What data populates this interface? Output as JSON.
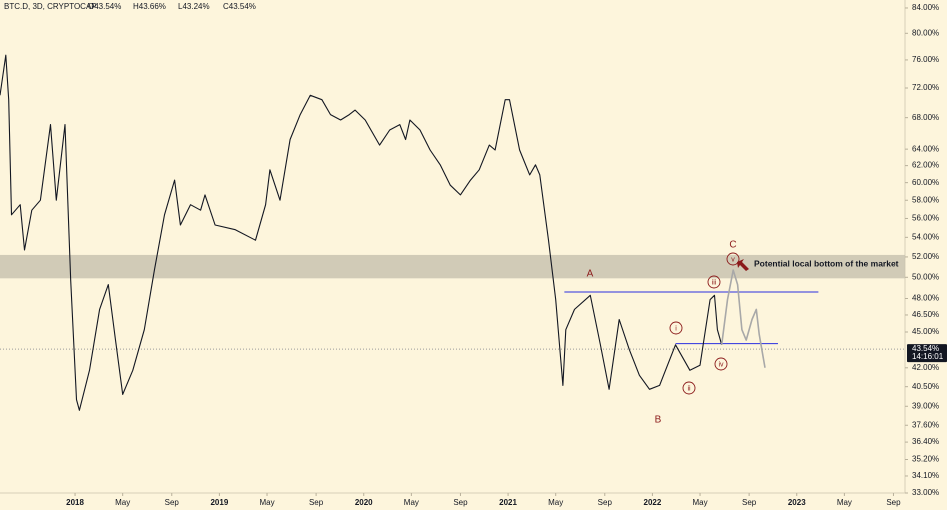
{
  "chart_data": {
    "type": "line",
    "title": "BTC.D, 3D, CRYPTOCAP",
    "ohlc_labels": [
      "O43.54%",
      "H43.66%",
      "L43.24%",
      "C43.54%"
    ],
    "xlim": [
      2017.48,
      2023.75
    ],
    "ylim": [
      33,
      85.3
    ],
    "log_y": true,
    "xticks": [
      2018,
      {
        "value": 2018.33,
        "label": "May"
      },
      {
        "value": 2018.67,
        "label": "Sep"
      },
      2019,
      {
        "value": 2019.33,
        "label": "May"
      },
      {
        "value": 2019.67,
        "label": "Sep"
      },
      2020,
      {
        "value": 2020.33,
        "label": "May"
      },
      {
        "value": 2020.67,
        "label": "Sep"
      },
      2021,
      {
        "value": 2021.33,
        "label": "May"
      },
      {
        "value": 2021.67,
        "label": "Sep"
      },
      2022,
      {
        "value": 2022.33,
        "label": "May"
      },
      {
        "value": 2022.67,
        "label": "Sep"
      },
      2023,
      {
        "value": 2023.33,
        "label": "May"
      },
      {
        "value": 2023.67,
        "label": "Sep"
      }
    ],
    "yticks": [
      {
        "value": 84,
        "label": "84.00%"
      },
      {
        "value": 80,
        "label": "80.00%"
      },
      {
        "value": 76,
        "label": "76.00%"
      },
      {
        "value": 72,
        "label": "72.00%"
      },
      {
        "value": 68,
        "label": "68.00%"
      },
      {
        "value": 64,
        "label": "64.00%"
      },
      {
        "value": 62,
        "label": "62.00%"
      },
      {
        "value": 60,
        "label": "60.00%"
      },
      {
        "value": 58,
        "label": "58.00%"
      },
      {
        "value": 56,
        "label": "56.00%"
      },
      {
        "value": 54,
        "label": "54.00%"
      },
      {
        "value": 52,
        "label": "52.00%"
      },
      {
        "value": 50,
        "label": "50.00%"
      },
      {
        "value": 48,
        "label": "48.00%"
      },
      {
        "value": 46.5,
        "label": "46.50%"
      },
      {
        "value": 45,
        "label": "45.00%"
      },
      {
        "value": 42,
        "label": "42.00%"
      },
      {
        "value": 40.5,
        "label": "40.50%"
      },
      {
        "value": 39,
        "label": "39.00%"
      },
      {
        "value": 37.6,
        "label": "37.60%"
      },
      {
        "value": 36.4,
        "label": "36.40%"
      },
      {
        "value": 35.2,
        "label": "35.20%"
      },
      {
        "value": 34.1,
        "label": "34.10%"
      },
      {
        "value": 33,
        "label": "33.00%"
      }
    ],
    "series": [
      {
        "color": "#131722",
        "x": [
          2017.48,
          2017.52,
          2017.54,
          2017.56,
          2017.62,
          2017.65,
          2017.7,
          2017.76,
          2017.83,
          2017.87,
          2017.93,
          2017.97,
          2018.01,
          2018.03,
          2018.1,
          2018.17,
          2018.23,
          2018.28,
          2018.33,
          2018.4,
          2018.48,
          2018.55,
          2018.62,
          2018.69,
          2018.73,
          2018.8,
          2018.87,
          2018.9,
          2018.97,
          2019.11,
          2019.25,
          2019.32,
          2019.35,
          2019.42,
          2019.49,
          2019.56,
          2019.63,
          2019.71,
          2019.77,
          2019.84,
          2019.9,
          2019.94,
          2020.01,
          2020.11,
          2020.18,
          2020.25,
          2020.29,
          2020.32,
          2020.39,
          2020.46,
          2020.53,
          2020.6,
          2020.67,
          2020.74,
          2020.8,
          2020.87,
          2020.91,
          2020.98,
          2021.01,
          2021.08,
          2021.15,
          2021.19,
          2021.22,
          2021.28,
          2021.33,
          2021.38,
          2021.4,
          2021.46,
          2021.57,
          2021.64,
          2021.7,
          2021.77,
          2021.84,
          2021.91,
          2021.98,
          2022.05,
          2022.16,
          2022.26,
          2022.33,
          2022.4,
          2022.43,
          2022.45,
          2022.48
        ],
        "values": [
          71.0,
          76.7,
          70.4,
          56.4,
          57.5,
          52.7,
          56.9,
          58.0,
          67.1,
          58.0,
          67.1,
          49.7,
          39.5,
          38.7,
          41.8,
          47.0,
          49.3,
          44.3,
          39.9,
          41.8,
          45.2,
          50.7,
          56.4,
          60.3,
          55.3,
          57.5,
          56.9,
          58.6,
          55.3,
          54.8,
          53.7,
          57.5,
          61.5,
          58.0,
          65.2,
          68.4,
          71.0,
          70.4,
          68.4,
          67.7,
          68.4,
          69.0,
          67.7,
          64.5,
          66.4,
          67.1,
          65.2,
          67.7,
          66.4,
          63.9,
          62.1,
          59.7,
          58.6,
          60.3,
          61.5,
          64.5,
          63.9,
          70.4,
          70.4,
          63.9,
          60.9,
          62.1,
          60.9,
          53.7,
          47.9,
          40.6,
          45.2,
          47.0,
          48.3,
          43.9,
          40.3,
          46.1,
          43.5,
          41.4,
          40.3,
          40.6,
          43.9,
          41.8,
          42.2,
          47.9,
          48.3,
          45.2,
          43.9
        ]
      },
      {
        "color": "#a8a8a8",
        "x": [
          2022.48,
          2022.52,
          2022.56,
          2022.59,
          2022.62,
          2022.65,
          2022.69,
          2022.72,
          2022.74,
          2022.78
        ],
        "values": [
          43.9,
          47.9,
          50.7,
          49.3,
          45.2,
          44.3,
          46.1,
          47.0,
          44.8,
          42.0
        ]
      }
    ],
    "zone": [
      49.9,
      52.2
    ],
    "zone_color": "#c9c3b0",
    "levels": [
      {
        "value": 48.6,
        "x": [
          2021.39,
          2023.15
        ]
      },
      {
        "value": 44.0,
        "x": [
          2022.16,
          2022.87
        ]
      }
    ],
    "level_color": "#2a2ee0",
    "wave_labels": [
      "A",
      "B",
      "C"
    ],
    "circled_labels": [
      "i",
      "ii",
      "iii",
      "iv",
      "v"
    ],
    "wave_color": "#8b1a1a",
    "note": "Potential local bottom of the market",
    "last_value": 43.54,
    "last_value_label": "43.54%",
    "countdown": "14:16:01"
  }
}
